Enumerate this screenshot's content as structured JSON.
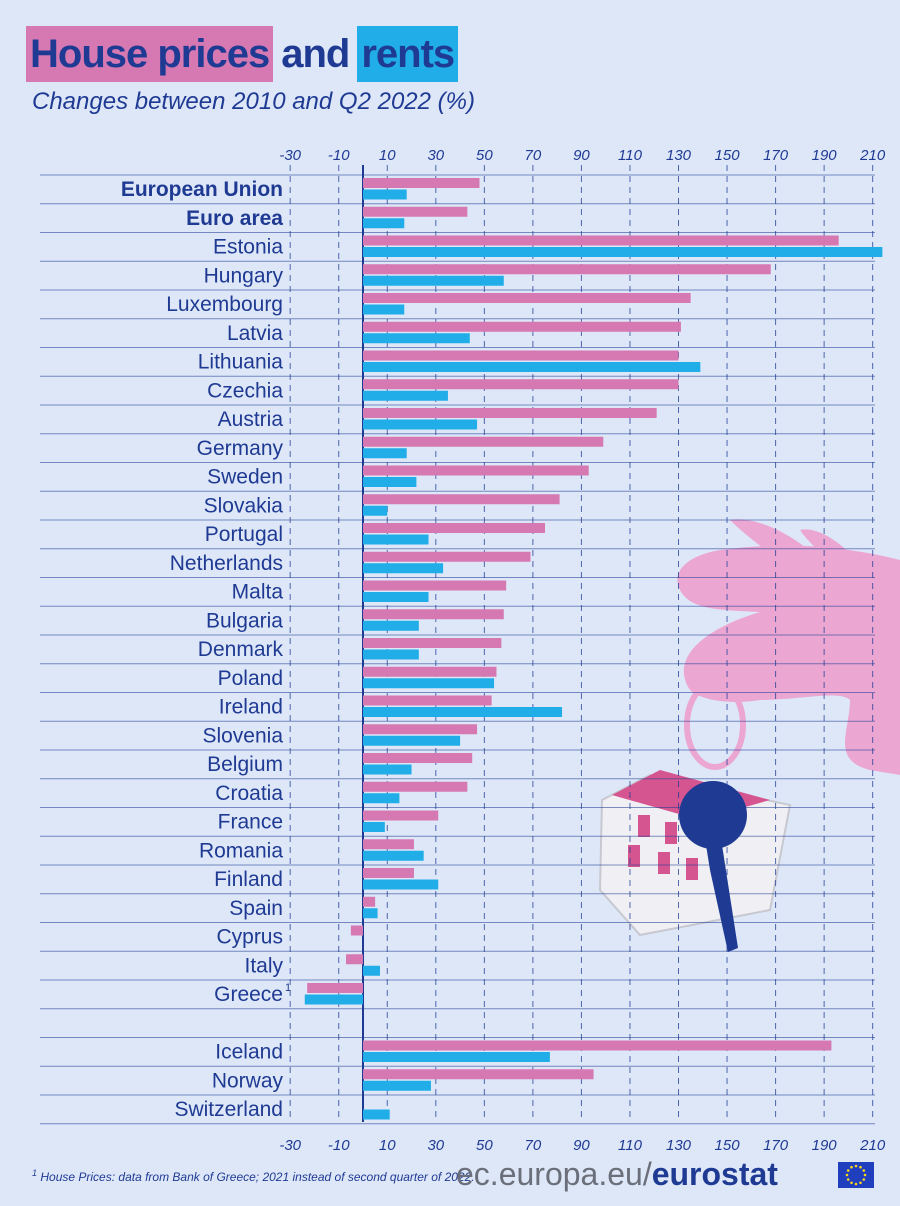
{
  "header": {
    "title_part1": "House prices",
    "title_part2": "and",
    "title_part3": "rents",
    "subtitle": "Changes between 2010 and Q2 2022 (%)"
  },
  "footer": {
    "footnote_marker": "1",
    "footnote": "House Prices: data from Bank of Greece; 2021 instead of second quarter of 2022.",
    "source_prefix": "ec.europa.eu/",
    "source_brand": "eurostat"
  },
  "colors": {
    "house_prices": "#d679b3",
    "rents": "#21aee8",
    "text": "#1f3a93",
    "background": "#dde7f8"
  },
  "chart_data": {
    "type": "bar",
    "orientation": "horizontal",
    "title": "House prices and rents",
    "subtitle": "Changes between 2010 and Q2 2022 (%)",
    "xlim": [
      -30,
      215
    ],
    "xticks": [
      "-30",
      "-10",
      "10",
      "30",
      "50",
      "70",
      "90",
      "110",
      "130",
      "150",
      "170",
      "190",
      "210"
    ],
    "grid": true,
    "categories": [
      "European Union",
      "Euro area",
      "Estonia",
      "Hungary",
      "Luxembourg",
      "Latvia",
      "Lithuania",
      "Czechia",
      "Austria",
      "Germany",
      "Sweden",
      "Slovakia",
      "Portugal",
      "Netherlands",
      "Malta",
      "Bulgaria",
      "Denmark",
      "Poland",
      "Ireland",
      "Slovenia",
      "Belgium",
      "Croatia",
      "France",
      "Romania",
      "Finland",
      "Spain",
      "Cyprus",
      "Italy",
      "Greece",
      "",
      "Iceland",
      "Norway",
      "Switzerland"
    ],
    "bold_categories": [
      "European Union",
      "Euro area"
    ],
    "superscripts": {
      "Greece": "1"
    },
    "series": [
      {
        "key": "house_prices",
        "values": [
          48,
          43,
          196,
          168,
          135,
          131,
          130,
          130,
          121,
          99,
          93,
          81,
          75,
          69,
          59,
          58,
          57,
          55,
          53,
          47,
          45,
          43,
          31,
          21,
          21,
          5,
          -5,
          -7,
          -23,
          null,
          193,
          95,
          null
        ]
      },
      {
        "key": "rents",
        "values": [
          18,
          17,
          214,
          58,
          17,
          44,
          139,
          35,
          47,
          18,
          22,
          10,
          27,
          33,
          27,
          23,
          23,
          54,
          82,
          40,
          20,
          15,
          9,
          25,
          31,
          6,
          null,
          7,
          -24,
          null,
          77,
          28,
          11
        ]
      }
    ]
  }
}
